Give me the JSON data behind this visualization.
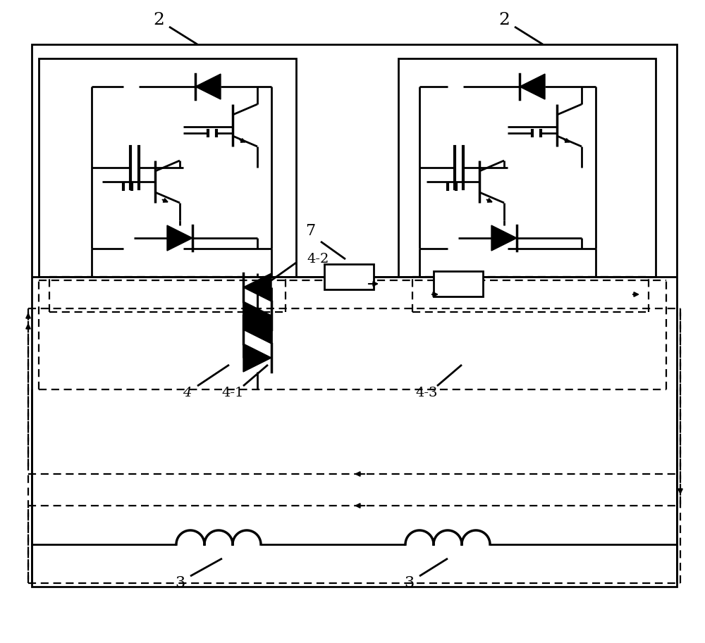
{
  "bg_color": "#ffffff",
  "line_color": "#000000",
  "lw": 2.0,
  "fig_width": 10.0,
  "fig_height": 9.13
}
